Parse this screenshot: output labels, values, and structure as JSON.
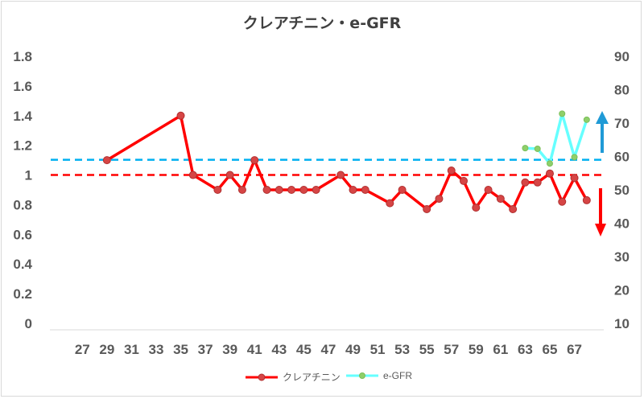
{
  "chart_data": {
    "type": "line",
    "title": "クレアチニン・e-GFR",
    "x": {
      "min": 27,
      "max": 68,
      "tick_labels": [
        27,
        29,
        31,
        33,
        35,
        37,
        39,
        41,
        43,
        45,
        47,
        49,
        51,
        53,
        55,
        57,
        59,
        61,
        63,
        65,
        67
      ]
    },
    "y_left": {
      "min": 0,
      "max": 1.8,
      "ticks": [
        "0",
        "0.2",
        "0.4",
        "0.6",
        "0.8",
        "1",
        "1.2",
        "1.4",
        "1.6",
        "1.8"
      ]
    },
    "y_right": {
      "min": 10,
      "max": 90,
      "ticks": [
        "10",
        "20",
        "30",
        "40",
        "50",
        "60",
        "70",
        "80",
        "90"
      ]
    },
    "grid": false,
    "series": [
      {
        "name": "クレアチニン",
        "axis": "left",
        "color": "#ff0000",
        "marker_color": "#d64545",
        "points": [
          [
            29,
            1.1
          ],
          [
            35,
            1.4
          ],
          [
            36,
            1.0
          ],
          [
            38,
            0.9
          ],
          [
            39,
            1.0
          ],
          [
            40,
            0.9
          ],
          [
            41,
            1.1
          ],
          [
            42,
            0.9
          ],
          [
            43,
            0.9
          ],
          [
            44,
            0.9
          ],
          [
            45,
            0.9
          ],
          [
            46,
            0.9
          ],
          [
            48,
            1.0
          ],
          [
            49,
            0.9
          ],
          [
            50,
            0.9
          ],
          [
            52,
            0.81
          ],
          [
            53,
            0.9
          ],
          [
            55,
            0.77
          ],
          [
            56,
            0.84
          ],
          [
            57,
            1.03
          ],
          [
            58,
            0.96
          ],
          [
            59,
            0.78
          ],
          [
            60,
            0.9
          ],
          [
            61,
            0.84
          ],
          [
            62,
            0.77
          ],
          [
            63,
            0.95
          ],
          [
            64,
            0.95
          ],
          [
            65,
            1.01
          ],
          [
            66,
            0.82
          ],
          [
            67,
            0.98
          ],
          [
            68,
            0.83
          ]
        ]
      },
      {
        "name": "e-GFR",
        "axis": "right",
        "color": "#66ffff",
        "marker_color": "#8fcf6a",
        "points": [
          [
            63,
            62.5
          ],
          [
            64,
            62.3
          ],
          [
            65,
            57.9
          ],
          [
            66,
            72.8
          ],
          [
            67,
            59.8
          ],
          [
            68,
            71.0
          ]
        ]
      }
    ],
    "reference_lines": [
      {
        "axis": "left",
        "value": 1.0,
        "color": "#ff0000",
        "style": "dashed"
      },
      {
        "axis": "right",
        "value": 59,
        "color": "#00b0f0",
        "style": "dashed"
      }
    ],
    "annotations": [
      {
        "type": "arrow",
        "direction": "down",
        "color": "#ff0000"
      },
      {
        "type": "arrow",
        "direction": "up",
        "color": "#1f9ad6"
      }
    ],
    "legend_position": "bottom"
  }
}
